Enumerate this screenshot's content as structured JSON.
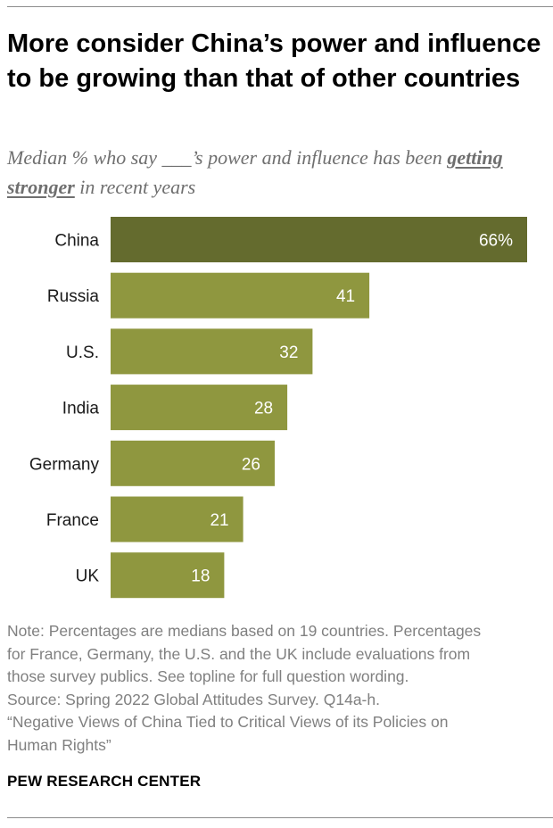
{
  "header": {
    "title": "More consider China’s power and influence to be growing than that of other countries",
    "subtitle_before": "Median % who say ___’s power and influence has been ",
    "subtitle_emphasis": "getting stronger",
    "subtitle_after": " in recent years"
  },
  "colors": {
    "highlight_bar": "#646b2e",
    "bar": "#8f973f",
    "value_text": "#ffffff",
    "category_text": "#1a1a1a"
  },
  "chart_data": {
    "type": "bar",
    "orientation": "horizontal",
    "title": "More consider China’s power and influence to be growing than that of other countries",
    "subtitle": "Median % who say ___’s power and influence has been getting stronger in recent years",
    "categories": [
      "China",
      "Russia",
      "U.S.",
      "India",
      "Germany",
      "France",
      "UK"
    ],
    "values": [
      66,
      41,
      32,
      28,
      26,
      21,
      18
    ],
    "value_labels": [
      "66%",
      "41",
      "32",
      "28",
      "26",
      "21",
      "18"
    ],
    "highlight_index": 0,
    "xlim": [
      0,
      66
    ],
    "xlabel": "",
    "ylabel": "",
    "grid": false,
    "legend": "none"
  },
  "footer": {
    "note_lines": [
      "Note: Percentages are medians based on 19 countries. Percentages",
      "for France, Germany, the U.S. and the UK include evaluations from",
      "those survey publics. See topline for full question wording.",
      "Source: Spring 2022 Global Attitudes Survey. Q14a-h.",
      "“Negative Views of China Tied to Critical Views of its Policies on",
      "Human Rights”"
    ],
    "brand": "PEW RESEARCH CENTER"
  }
}
